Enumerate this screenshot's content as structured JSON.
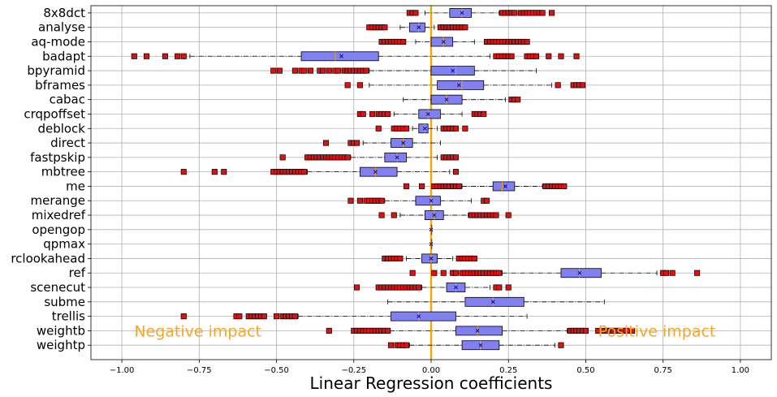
{
  "chart_data": {
    "type": "boxplot",
    "orientation": "horizontal",
    "xlabel": "Linear Regression coefficients",
    "ylabel": "",
    "xlim": [
      -1.1,
      1.1
    ],
    "x_ticks": [
      -1.0,
      -0.75,
      -0.5,
      -0.25,
      0.0,
      0.25,
      0.5,
      0.75,
      1.0
    ],
    "x_tick_labels": [
      "−1.00",
      "−0.75",
      "−0.50",
      "−0.25",
      "0.00",
      "0.25",
      "0.50",
      "0.75",
      "1.00"
    ],
    "grid": true,
    "reference_line": {
      "x": 0.0,
      "color": "#f5a800"
    },
    "colors": {
      "box_fill": "#8080f0",
      "median": "#f0a000",
      "mean_marker": "#1010b0",
      "outlier_fill": "#e01010",
      "annotation": "#f5a623"
    },
    "annotations": [
      {
        "text": "Negative impact",
        "side": "left"
      },
      {
        "text": "Positive impact",
        "side": "right"
      }
    ],
    "categories": [
      "8x8dct",
      "analyse",
      "aq-mode",
      "badapt",
      "bpyramid",
      "bframes",
      "cabac",
      "crqpoffset",
      "deblock",
      "direct",
      "fastpskip",
      "mbtree",
      "me",
      "merange",
      "mixedref",
      "opengop",
      "qpmax",
      "rclookahead",
      "ref",
      "scenecut",
      "subme",
      "trellis",
      "weightb",
      "weightp"
    ],
    "boxes": [
      {
        "name": "8x8dct",
        "whislo": -0.02,
        "q1": 0.06,
        "median": 0.1,
        "mean": 0.1,
        "q3": 0.13,
        "whishi": 0.22,
        "outliers": [
          -0.07,
          -0.06,
          -0.05,
          0.23,
          0.24,
          0.25,
          0.26,
          0.27,
          0.29,
          0.3,
          0.31,
          0.32,
          0.33,
          0.34,
          0.35,
          0.36,
          0.39
        ]
      },
      {
        "name": "analyse",
        "whislo": -0.1,
        "q1": -0.07,
        "median": -0.04,
        "mean": -0.04,
        "q3": -0.02,
        "whishi": 0.01,
        "outliers": [
          -0.2,
          -0.19,
          -0.18,
          -0.17,
          -0.16,
          -0.15,
          0.03,
          0.04,
          0.05,
          0.06,
          0.07,
          0.08,
          0.09,
          0.1,
          0.11
        ]
      },
      {
        "name": "aq-mode",
        "whislo": -0.05,
        "q1": 0.0,
        "median": 0.04,
        "mean": 0.04,
        "q3": 0.07,
        "whishi": 0.14,
        "outliers": [
          -0.16,
          -0.15,
          -0.14,
          -0.13,
          -0.12,
          -0.11,
          -0.1,
          -0.09,
          0.18,
          0.19,
          0.2,
          0.21,
          0.22,
          0.23,
          0.24,
          0.25,
          0.26,
          0.27,
          0.28,
          0.29,
          0.3,
          0.31
        ]
      },
      {
        "name": "badapt",
        "whislo": -0.78,
        "q1": -0.42,
        "median": -0.31,
        "mean": -0.29,
        "q3": -0.17,
        "whishi": 0.19,
        "outliers": [
          -0.96,
          -0.92,
          -0.86,
          -0.82,
          -0.8,
          0.21,
          0.22,
          0.23,
          0.24,
          0.25,
          0.26,
          0.31,
          0.32,
          0.33,
          0.34,
          0.38,
          0.42,
          0.47
        ]
      },
      {
        "name": "bpyramid",
        "whislo": -0.2,
        "q1": 0.0,
        "median": 0.08,
        "mean": 0.07,
        "q3": 0.14,
        "whishi": 0.34,
        "outliers": [
          -0.51,
          -0.49,
          -0.44,
          -0.42,
          -0.41,
          -0.39,
          -0.36,
          -0.35,
          -0.33,
          -0.31,
          -0.3,
          -0.28,
          -0.27,
          -0.26,
          -0.25,
          -0.24,
          -0.23,
          -0.22,
          -0.21
        ]
      },
      {
        "name": "bframes",
        "whislo": -0.2,
        "q1": 0.02,
        "median": 0.1,
        "mean": 0.09,
        "q3": 0.17,
        "whishi": 0.39,
        "outliers": [
          -0.27,
          -0.23,
          0.41,
          0.46,
          0.47,
          0.48,
          0.49
        ]
      },
      {
        "name": "cabac",
        "whislo": -0.09,
        "q1": 0.0,
        "median": 0.05,
        "mean": 0.05,
        "q3": 0.1,
        "whishi": 0.24,
        "outliers": [
          0.26,
          0.27,
          0.28
        ]
      },
      {
        "name": "crqpoffset",
        "whislo": -0.12,
        "q1": -0.04,
        "median": -0.01,
        "mean": -0.01,
        "q3": 0.03,
        "whishi": 0.1,
        "outliers": [
          -0.23,
          -0.22,
          -0.19,
          -0.17,
          -0.16,
          -0.15,
          -0.14,
          0.14,
          0.15,
          0.16,
          0.17
        ]
      },
      {
        "name": "deblock",
        "whislo": -0.06,
        "q1": -0.04,
        "median": -0.02,
        "mean": -0.02,
        "q3": -0.01,
        "whishi": 0.02,
        "outliers": [
          -0.17,
          -0.12,
          -0.11,
          -0.1,
          -0.09,
          -0.08,
          0.04,
          0.05,
          0.06,
          0.07,
          0.08,
          0.11
        ]
      },
      {
        "name": "direct",
        "whislo": -0.22,
        "q1": -0.13,
        "median": -0.09,
        "mean": -0.09,
        "q3": -0.06,
        "whishi": 0.03,
        "outliers": [
          -0.34,
          -0.26,
          -0.25,
          -0.24
        ]
      },
      {
        "name": "fastpskip",
        "whislo": -0.26,
        "q1": -0.15,
        "median": -0.11,
        "mean": -0.11,
        "q3": -0.08,
        "whishi": 0.02,
        "outliers": [
          -0.48,
          -0.4,
          -0.39,
          -0.38,
          -0.37,
          -0.36,
          -0.35,
          -0.34,
          -0.33,
          -0.32,
          -0.31,
          -0.3,
          -0.29,
          -0.28,
          -0.27,
          0.04,
          0.05,
          0.06,
          0.07,
          0.08
        ]
      },
      {
        "name": "mbtree",
        "whislo": -0.4,
        "q1": -0.23,
        "median": -0.18,
        "mean": -0.18,
        "q3": -0.11,
        "whishi": 0.06,
        "outliers": [
          -0.8,
          -0.7,
          -0.67,
          -0.51,
          -0.5,
          -0.49,
          -0.48,
          -0.47,
          -0.46,
          -0.45,
          -0.44,
          -0.43,
          -0.42,
          -0.41,
          0.08
        ]
      },
      {
        "name": "me",
        "whislo": 0.1,
        "q1": 0.2,
        "median": 0.23,
        "mean": 0.24,
        "q3": 0.27,
        "whishi": 0.36,
        "outliers": [
          -0.08,
          -0.03,
          0.01,
          0.02,
          0.03,
          0.04,
          0.05,
          0.06,
          0.07,
          0.08,
          0.09,
          0.37,
          0.38,
          0.39,
          0.4,
          0.41,
          0.42,
          0.43
        ]
      },
      {
        "name": "merange",
        "whislo": -0.15,
        "q1": -0.05,
        "median": 0.0,
        "mean": 0.0,
        "q3": 0.03,
        "whishi": 0.13,
        "outliers": [
          -0.26,
          -0.23,
          -0.21,
          -0.2,
          -0.19,
          -0.18,
          -0.17,
          -0.16,
          0.17,
          0.18
        ]
      },
      {
        "name": "mixedref",
        "whislo": -0.1,
        "q1": -0.02,
        "median": 0.01,
        "mean": 0.01,
        "q3": 0.04,
        "whishi": 0.12,
        "outliers": [
          -0.16,
          -0.12,
          0.13,
          0.14,
          0.15,
          0.16,
          0.17,
          0.18,
          0.19,
          0.2,
          0.21,
          0.25
        ]
      },
      {
        "name": "opengop",
        "whislo": 0.0,
        "q1": 0.0,
        "median": 0.0,
        "mean": 0.0,
        "q3": 0.0,
        "whishi": 0.0,
        "outliers": []
      },
      {
        "name": "qpmax",
        "whislo": 0.0,
        "q1": 0.0,
        "median": 0.0,
        "mean": 0.0,
        "q3": 0.0,
        "whishi": 0.0,
        "outliers": []
      },
      {
        "name": "rclookahead",
        "whislo": -0.08,
        "q1": -0.03,
        "median": 0.0,
        "mean": 0.0,
        "q3": 0.02,
        "whishi": 0.07,
        "outliers": [
          -0.15,
          -0.14,
          -0.13,
          -0.12,
          -0.11,
          -0.1,
          0.09,
          0.1,
          0.11,
          0.12,
          0.13,
          0.14
        ]
      },
      {
        "name": "ref",
        "whislo": 0.23,
        "q1": 0.42,
        "median": 0.48,
        "mean": 0.48,
        "q3": 0.55,
        "whishi": 0.73,
        "outliers": [
          -0.06,
          0.01,
          0.04,
          0.07,
          0.08,
          0.1,
          0.11,
          0.12,
          0.13,
          0.14,
          0.15,
          0.16,
          0.17,
          0.18,
          0.19,
          0.2,
          0.21,
          0.22,
          0.75,
          0.76,
          0.78,
          0.86
        ]
      },
      {
        "name": "scenecut",
        "whislo": -0.03,
        "q1": 0.05,
        "median": 0.08,
        "mean": 0.08,
        "q3": 0.11,
        "whishi": 0.19,
        "outliers": [
          -0.24,
          -0.17,
          -0.16,
          -0.15,
          -0.14,
          -0.13,
          -0.12,
          -0.11,
          -0.1,
          -0.09,
          -0.08,
          -0.07,
          -0.06,
          -0.05,
          -0.04,
          0.21,
          0.22,
          0.25
        ]
      },
      {
        "name": "subme",
        "whislo": -0.14,
        "q1": 0.11,
        "median": 0.2,
        "mean": 0.2,
        "q3": 0.3,
        "whishi": 0.56,
        "outliers": []
      },
      {
        "name": "trellis",
        "whislo": -0.43,
        "q1": -0.13,
        "median": -0.04,
        "mean": -0.04,
        "q3": 0.08,
        "whishi": 0.31,
        "outliers": [
          -0.8,
          -0.63,
          -0.62,
          -0.59,
          -0.58,
          -0.57,
          -0.56,
          -0.55,
          -0.54,
          -0.5,
          -0.48,
          -0.47,
          -0.46,
          -0.45,
          -0.44
        ]
      },
      {
        "name": "weightb",
        "whislo": -0.22,
        "q1": 0.08,
        "median": 0.15,
        "mean": 0.15,
        "q3": 0.23,
        "whishi": 0.44,
        "outliers": [
          -0.33,
          -0.25,
          -0.24,
          -0.23,
          -0.22,
          -0.21,
          -0.2,
          -0.19,
          -0.18,
          -0.17,
          -0.16,
          -0.15,
          -0.14,
          0.45,
          0.46,
          0.47,
          0.48,
          0.49,
          0.5,
          0.54,
          0.56,
          0.57,
          0.58,
          0.59,
          0.6,
          0.61,
          0.62,
          0.63,
          0.64,
          0.65
        ]
      },
      {
        "name": "weightp",
        "whislo": -0.07,
        "q1": 0.1,
        "median": 0.16,
        "mean": 0.16,
        "q3": 0.22,
        "whishi": 0.4,
        "outliers": [
          -0.13,
          -0.11,
          -0.1,
          -0.09,
          -0.08,
          0.42
        ]
      }
    ]
  }
}
